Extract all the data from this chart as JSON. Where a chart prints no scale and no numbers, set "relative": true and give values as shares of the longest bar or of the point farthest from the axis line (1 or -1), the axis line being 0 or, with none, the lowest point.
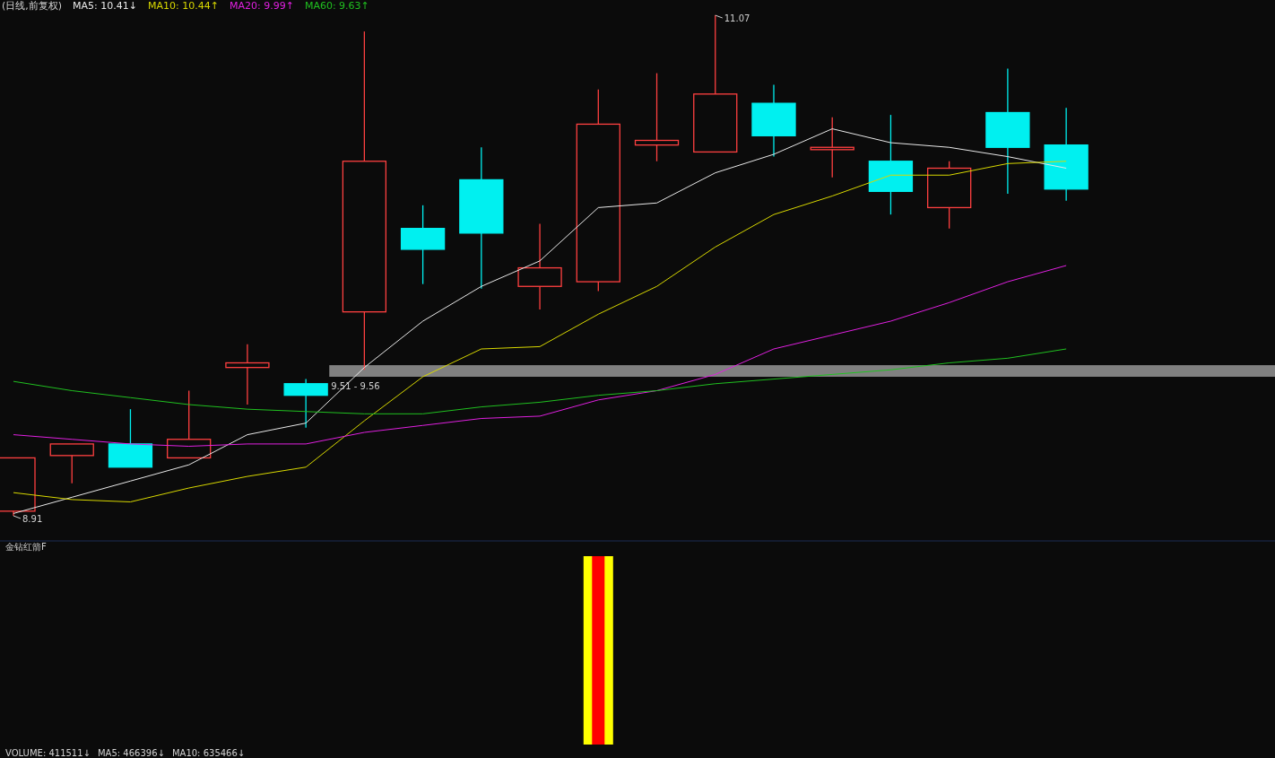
{
  "chart_data": [
    {
      "type": "candlestick",
      "title": "(日线,前复权)",
      "legend": "top left",
      "tick_labels": false,
      "categories": [
        null,
        null,
        null,
        null,
        null,
        null,
        null,
        null,
        null,
        null,
        null,
        null,
        null,
        null,
        null,
        null,
        null,
        null,
        null
      ],
      "ohlc": [
        [
          8.93,
          9.16,
          8.91,
          9.16
        ],
        [
          9.17,
          9.22,
          9.05,
          9.22
        ],
        [
          9.22,
          9.37,
          9.12,
          9.12
        ],
        [
          9.16,
          9.45,
          9.16,
          9.24
        ],
        [
          9.55,
          9.65,
          9.39,
          9.57
        ],
        [
          9.48,
          9.5,
          9.29,
          9.43
        ],
        [
          9.79,
          11.0,
          9.54,
          10.44
        ],
        [
          10.15,
          10.25,
          9.91,
          10.06
        ],
        [
          10.36,
          10.5,
          9.89,
          10.13
        ],
        [
          9.9,
          10.17,
          9.8,
          9.98
        ],
        [
          9.92,
          10.75,
          9.88,
          10.6
        ],
        [
          10.51,
          10.82,
          10.44,
          10.53
        ],
        [
          10.48,
          11.07,
          10.48,
          10.73
        ],
        [
          10.69,
          10.77,
          10.46,
          10.55
        ],
        [
          10.49,
          10.63,
          10.37,
          10.5
        ],
        [
          10.44,
          10.64,
          10.21,
          10.31
        ],
        [
          10.24,
          10.44,
          10.15,
          10.41
        ],
        [
          10.65,
          10.84,
          10.3,
          10.5
        ],
        [
          10.51,
          10.67,
          10.27,
          10.32
        ]
      ],
      "series": [
        {
          "type": "line",
          "name": "MA5: 10.41↓",
          "color": "#e8e8e8",
          "values": [
            8.92,
            8.99,
            9.06,
            9.13,
            9.26,
            9.31,
            9.55,
            9.75,
            9.9,
            10.01,
            10.24,
            10.26,
            10.39,
            10.47,
            10.58,
            10.52,
            10.5,
            10.46,
            10.41
          ]
        },
        {
          "type": "line",
          "name": "MA10: 10.44↑",
          "color": "#d8d800",
          "values": [
            9.01,
            8.98,
            8.97,
            9.03,
            9.08,
            9.12,
            9.32,
            9.51,
            9.63,
            9.64,
            9.78,
            9.9,
            10.07,
            10.21,
            10.29,
            10.38,
            10.38,
            10.43,
            10.44
          ]
        },
        {
          "type": "line",
          "name": "MA20: 9.99↑",
          "color": "#e020e0",
          "values": [
            9.26,
            9.24,
            9.22,
            9.21,
            9.22,
            9.22,
            9.27,
            9.3,
            9.33,
            9.34,
            9.41,
            9.45,
            9.52,
            9.63,
            9.69,
            9.75,
            9.83,
            9.92,
            9.99
          ]
        },
        {
          "type": "line",
          "name": "MA60: 9.63↑",
          "color": "#20c020",
          "values": [
            9.49,
            9.45,
            9.42,
            9.39,
            9.37,
            9.36,
            9.35,
            9.35,
            9.38,
            9.4,
            9.43,
            9.45,
            9.48,
            9.5,
            9.52,
            9.54,
            9.57,
            9.59,
            9.63
          ]
        }
      ],
      "bands": [
        {
          "axis": "y",
          "from": 9.51,
          "to": 9.56,
          "label": "9.51 - 9.56",
          "color": "#808080"
        }
      ],
      "annotations": [
        "11.07",
        "8.91"
      ]
    },
    {
      "type": "bar",
      "title": "金钻红箭F",
      "relative": true,
      "tick_labels": false,
      "categories": [
        null,
        null,
        null,
        null,
        null,
        null,
        null,
        null,
        null,
        null,
        null,
        null,
        null,
        null,
        null,
        null,
        null,
        null,
        null
      ],
      "series": [
        {
          "color": "#ffff00",
          "values": [
            null,
            null,
            null,
            null,
            null,
            null,
            null,
            null,
            null,
            null,
            1,
            null,
            null,
            null,
            null,
            null,
            null,
            null,
            null
          ]
        },
        {
          "color": "#ff0000",
          "values": [
            null,
            null,
            null,
            null,
            null,
            null,
            null,
            null,
            null,
            null,
            1,
            null,
            null,
            null,
            null,
            null,
            null,
            null,
            null
          ]
        }
      ],
      "annotations": [
        "VOLUME: 411511↓",
        "MA5: 466396↓",
        "MA10: 635466↓"
      ]
    }
  ]
}
